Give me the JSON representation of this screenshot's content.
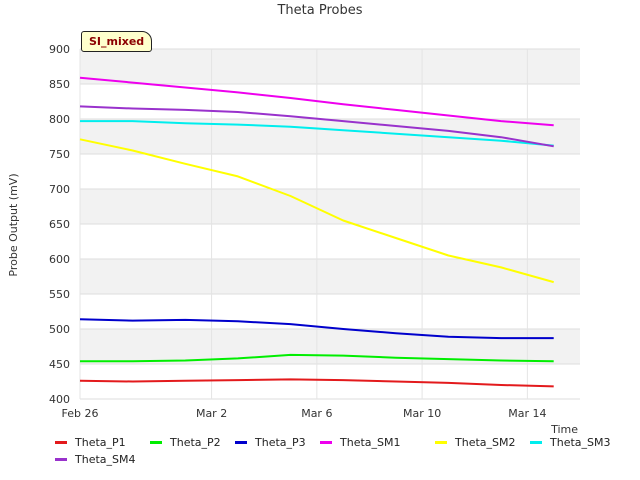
{
  "title": "Theta Probes",
  "badge": "SI_mixed",
  "chart_data": {
    "type": "line",
    "title": "Theta Probes",
    "xlabel": "Time",
    "ylabel": "Probe Output (mV)",
    "ylim": [
      400,
      900
    ],
    "xlim": [
      "2024-02-26",
      "2024-03-16"
    ],
    "yticks": [
      400,
      450,
      500,
      550,
      600,
      650,
      700,
      750,
      800,
      850,
      900
    ],
    "xticks": [
      {
        "date": "2024-02-26",
        "label": "Feb 26"
      },
      {
        "date": "2024-03-02",
        "label": "Mar 2"
      },
      {
        "date": "2024-03-06",
        "label": "Mar 6"
      },
      {
        "date": "2024-03-10",
        "label": "Mar 10"
      },
      {
        "date": "2024-03-14",
        "label": "Mar 14"
      }
    ],
    "grid": true,
    "legend_position": "bottom",
    "series": [
      {
        "name": "Theta_P1",
        "color": "#e31a1c",
        "points": [
          [
            "2024-02-26",
            426
          ],
          [
            "2024-02-28",
            425
          ],
          [
            "2024-03-01",
            426
          ],
          [
            "2024-03-03",
            427
          ],
          [
            "2024-03-05",
            428
          ],
          [
            "2024-03-07",
            427
          ],
          [
            "2024-03-09",
            425
          ],
          [
            "2024-03-11",
            423
          ],
          [
            "2024-03-13",
            420
          ],
          [
            "2024-03-15",
            418
          ]
        ]
      },
      {
        "name": "Theta_P2",
        "color": "#00ee00",
        "points": [
          [
            "2024-02-26",
            454
          ],
          [
            "2024-02-28",
            454
          ],
          [
            "2024-03-01",
            455
          ],
          [
            "2024-03-03",
            458
          ],
          [
            "2024-03-05",
            463
          ],
          [
            "2024-03-07",
            462
          ],
          [
            "2024-03-09",
            459
          ],
          [
            "2024-03-11",
            457
          ],
          [
            "2024-03-13",
            455
          ],
          [
            "2024-03-15",
            454
          ]
        ]
      },
      {
        "name": "Theta_P3",
        "color": "#0000cc",
        "points": [
          [
            "2024-02-26",
            514
          ],
          [
            "2024-02-28",
            512
          ],
          [
            "2024-03-01",
            513
          ],
          [
            "2024-03-03",
            511
          ],
          [
            "2024-03-05",
            507
          ],
          [
            "2024-03-07",
            500
          ],
          [
            "2024-03-09",
            494
          ],
          [
            "2024-03-11",
            489
          ],
          [
            "2024-03-13",
            487
          ],
          [
            "2024-03-15",
            487
          ]
        ]
      },
      {
        "name": "Theta_SM1",
        "color": "#ee00ee",
        "points": [
          [
            "2024-02-26",
            859
          ],
          [
            "2024-02-28",
            852
          ],
          [
            "2024-03-01",
            845
          ],
          [
            "2024-03-03",
            838
          ],
          [
            "2024-03-05",
            830
          ],
          [
            "2024-03-07",
            821
          ],
          [
            "2024-03-09",
            813
          ],
          [
            "2024-03-11",
            805
          ],
          [
            "2024-03-13",
            797
          ],
          [
            "2024-03-15",
            791
          ]
        ]
      },
      {
        "name": "Theta_SM2",
        "color": "#ffff00",
        "points": [
          [
            "2024-02-26",
            771
          ],
          [
            "2024-02-28",
            755
          ],
          [
            "2024-03-01",
            736
          ],
          [
            "2024-03-03",
            718
          ],
          [
            "2024-03-05",
            690
          ],
          [
            "2024-03-07",
            655
          ],
          [
            "2024-03-09",
            630
          ],
          [
            "2024-03-11",
            605
          ],
          [
            "2024-03-13",
            588
          ],
          [
            "2024-03-15",
            567
          ]
        ]
      },
      {
        "name": "Theta_SM3",
        "color": "#00eeee",
        "points": [
          [
            "2024-02-26",
            797
          ],
          [
            "2024-02-28",
            797
          ],
          [
            "2024-03-01",
            794
          ],
          [
            "2024-03-03",
            792
          ],
          [
            "2024-03-05",
            789
          ],
          [
            "2024-03-07",
            784
          ],
          [
            "2024-03-09",
            779
          ],
          [
            "2024-03-11",
            774
          ],
          [
            "2024-03-13",
            769
          ],
          [
            "2024-03-15",
            762
          ]
        ]
      },
      {
        "name": "Theta_SM4",
        "color": "#9932cc",
        "points": [
          [
            "2024-02-26",
            818
          ],
          [
            "2024-02-28",
            815
          ],
          [
            "2024-03-01",
            813
          ],
          [
            "2024-03-03",
            810
          ],
          [
            "2024-03-05",
            804
          ],
          [
            "2024-03-07",
            797
          ],
          [
            "2024-03-09",
            790
          ],
          [
            "2024-03-11",
            783
          ],
          [
            "2024-03-13",
            774
          ],
          [
            "2024-03-15",
            761
          ]
        ]
      }
    ]
  }
}
